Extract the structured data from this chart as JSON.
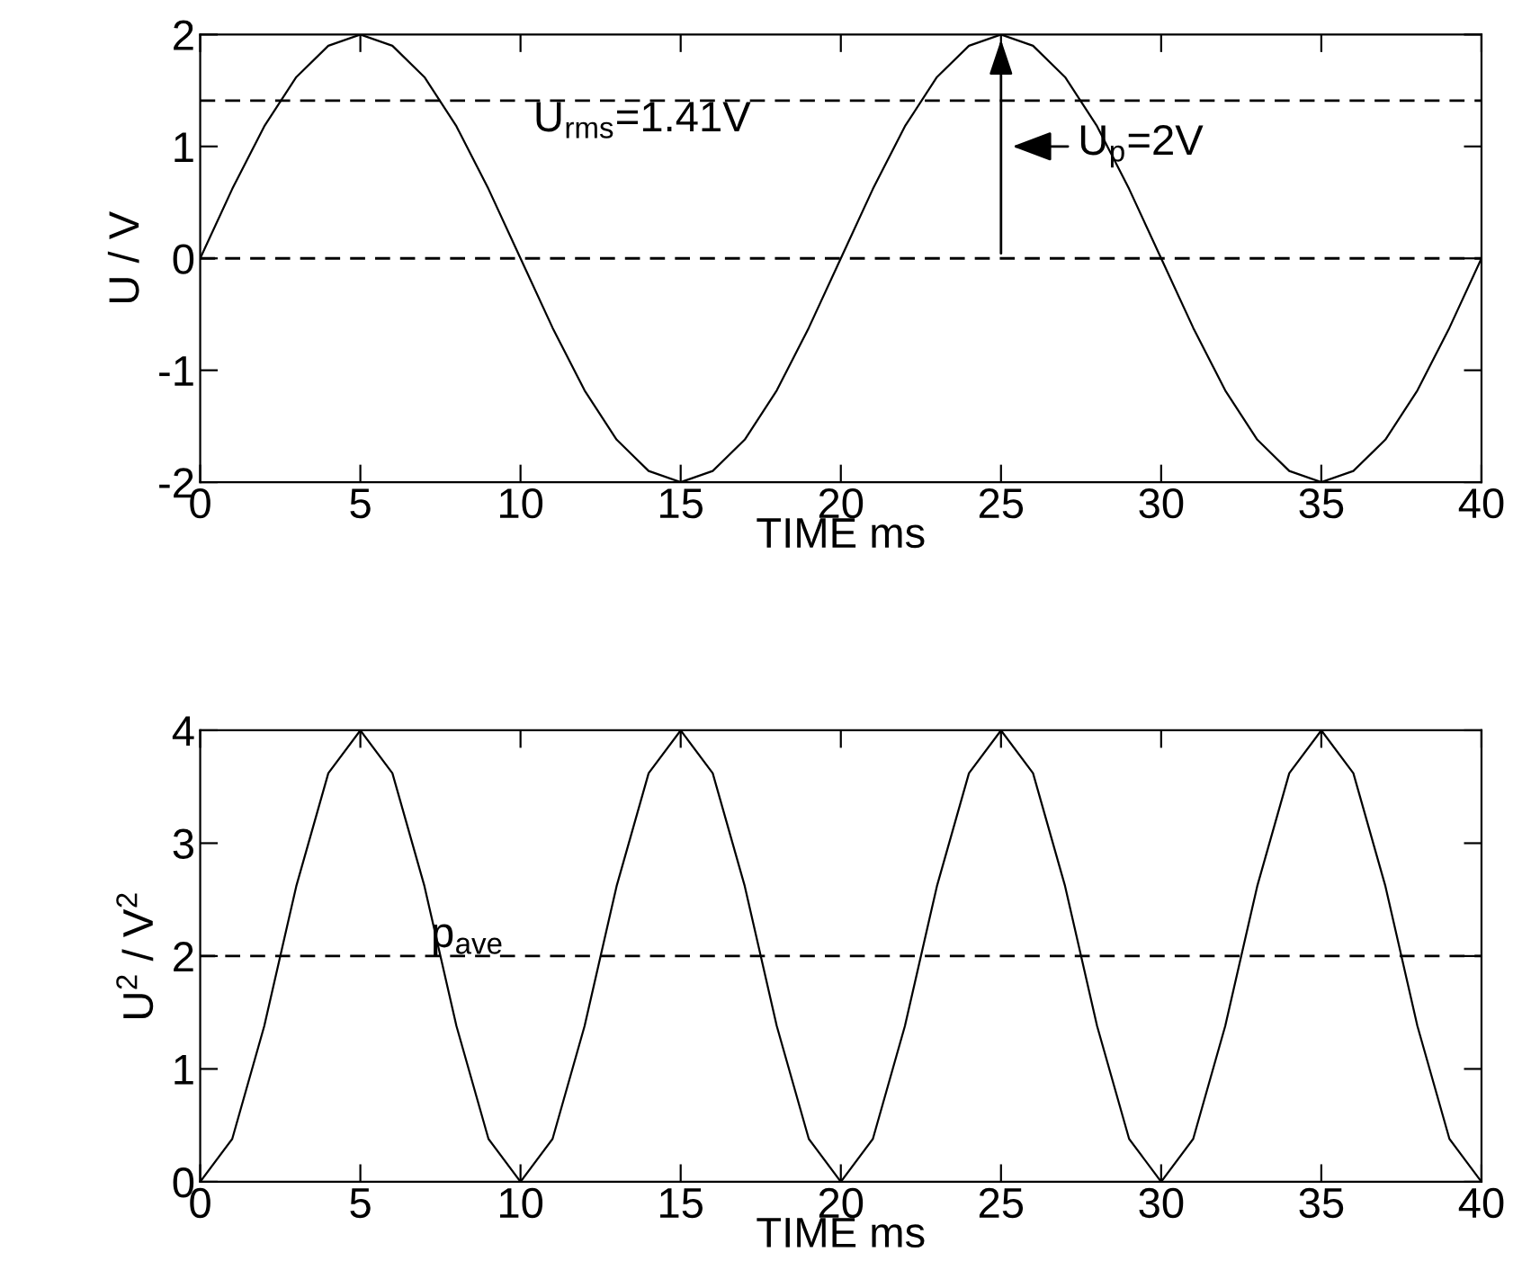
{
  "chart_data": [
    {
      "type": "line",
      "xlabel": "TIME ms",
      "ylabel": "U / V",
      "x": [
        0,
        1,
        2,
        3,
        4,
        5,
        6,
        7,
        8,
        9,
        10,
        11,
        12,
        13,
        14,
        15,
        16,
        17,
        18,
        19,
        20,
        21,
        22,
        23,
        24,
        25,
        26,
        27,
        28,
        29,
        30,
        31,
        32,
        33,
        34,
        35,
        36,
        37,
        38,
        39,
        40
      ],
      "series": [
        {
          "color": "#000000",
          "values": [
            0,
            0.62,
            1.18,
            1.62,
            1.9,
            2,
            1.9,
            1.62,
            1.18,
            0.62,
            0,
            -0.62,
            -1.18,
            -1.62,
            -1.9,
            -2,
            -1.9,
            -1.62,
            -1.18,
            -0.62,
            0,
            0.62,
            1.18,
            1.62,
            1.9,
            2,
            1.9,
            1.62,
            1.18,
            0.62,
            0,
            -0.62,
            -1.18,
            -1.62,
            -1.9,
            -2,
            -1.9,
            -1.62,
            -1.18,
            -0.62,
            0
          ]
        }
      ],
      "xlim": [
        0,
        40
      ],
      "xticks": [
        0,
        5,
        10,
        15,
        20,
        25,
        30,
        35,
        40
      ],
      "ylim": [
        -2,
        2
      ],
      "yticks": [
        -2,
        -1,
        0,
        1,
        2
      ],
      "ref_lines": [
        {
          "axis": "y",
          "value": 1.41,
          "label": "U$_{rms}$=1.41V",
          "line_style": "dashed"
        },
        {
          "axis": "y",
          "value": 0,
          "line_style": "dashed"
        }
      ],
      "annotations": [
        {
          "text": "U$_{p}$=2V",
          "x": 25,
          "y": 2
        }
      ],
      "grid": false,
      "legend": false,
      "marker": "none",
      "line_style": "solid"
    },
    {
      "type": "line",
      "xlabel": "TIME ms",
      "ylabel": "U$^{2}$ / V$^{2}$",
      "x": [
        0,
        1,
        2,
        3,
        4,
        5,
        6,
        7,
        8,
        9,
        10,
        11,
        12,
        13,
        14,
        15,
        16,
        17,
        18,
        19,
        20,
        21,
        22,
        23,
        24,
        25,
        26,
        27,
        28,
        29,
        30,
        31,
        32,
        33,
        34,
        35,
        36,
        37,
        38,
        39,
        40
      ],
      "series": [
        {
          "color": "#000000",
          "values": [
            0,
            0.38,
            1.38,
            2.62,
            3.62,
            4,
            3.62,
            2.62,
            1.38,
            0.38,
            0,
            0.38,
            1.38,
            2.62,
            3.62,
            4,
            3.62,
            2.62,
            1.38,
            0.38,
            0,
            0.38,
            1.38,
            2.62,
            3.62,
            4,
            3.62,
            2.62,
            1.38,
            0.38,
            0,
            0.38,
            1.38,
            2.62,
            3.62,
            4,
            3.62,
            2.62,
            1.38,
            0.38,
            0
          ]
        }
      ],
      "xlim": [
        0,
        40
      ],
      "xticks": [
        0,
        5,
        10,
        15,
        20,
        25,
        30,
        35,
        40
      ],
      "ylim": [
        0,
        4
      ],
      "yticks": [
        0,
        1,
        2,
        3,
        4
      ],
      "ref_lines": [
        {
          "axis": "y",
          "value": 2,
          "label": "p$_{ave}$",
          "line_style": "dashed"
        }
      ],
      "grid": false,
      "legend": false,
      "marker": "none",
      "line_style": "solid"
    }
  ]
}
